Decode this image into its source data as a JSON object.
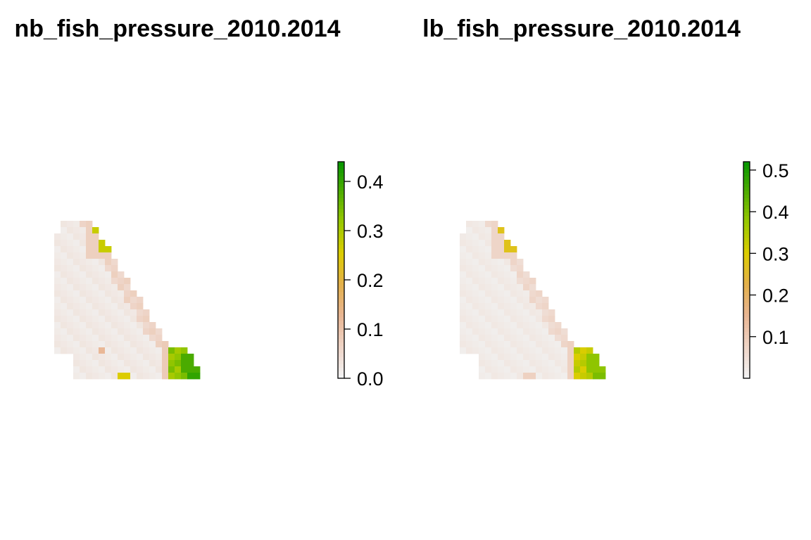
{
  "panels": [
    {
      "title": "nb_fish_pressure_2010.2014",
      "legend": {
        "ticks": [
          "0.0",
          "0.1",
          "0.2",
          "0.3",
          "0.4"
        ],
        "tick_values": [
          0.0,
          0.1,
          0.2,
          0.3,
          0.4
        ],
        "range": [
          0.0,
          0.44
        ]
      }
    },
    {
      "title": "lb_fish_pressure_2010.2014",
      "legend": {
        "ticks": [
          "0.1",
          "0.2",
          "0.3",
          "0.4",
          "0.5"
        ],
        "tick_values": [
          0.1,
          0.2,
          0.3,
          0.4,
          0.5
        ],
        "range": [
          0.0,
          0.52
        ]
      }
    }
  ],
  "colors": {
    "ramp": [
      "#f2f2f2",
      "#eed3c5",
      "#e8b592",
      "#e3b04a",
      "#dccd00",
      "#98c800",
      "#4dac00",
      "#019500"
    ]
  }
}
